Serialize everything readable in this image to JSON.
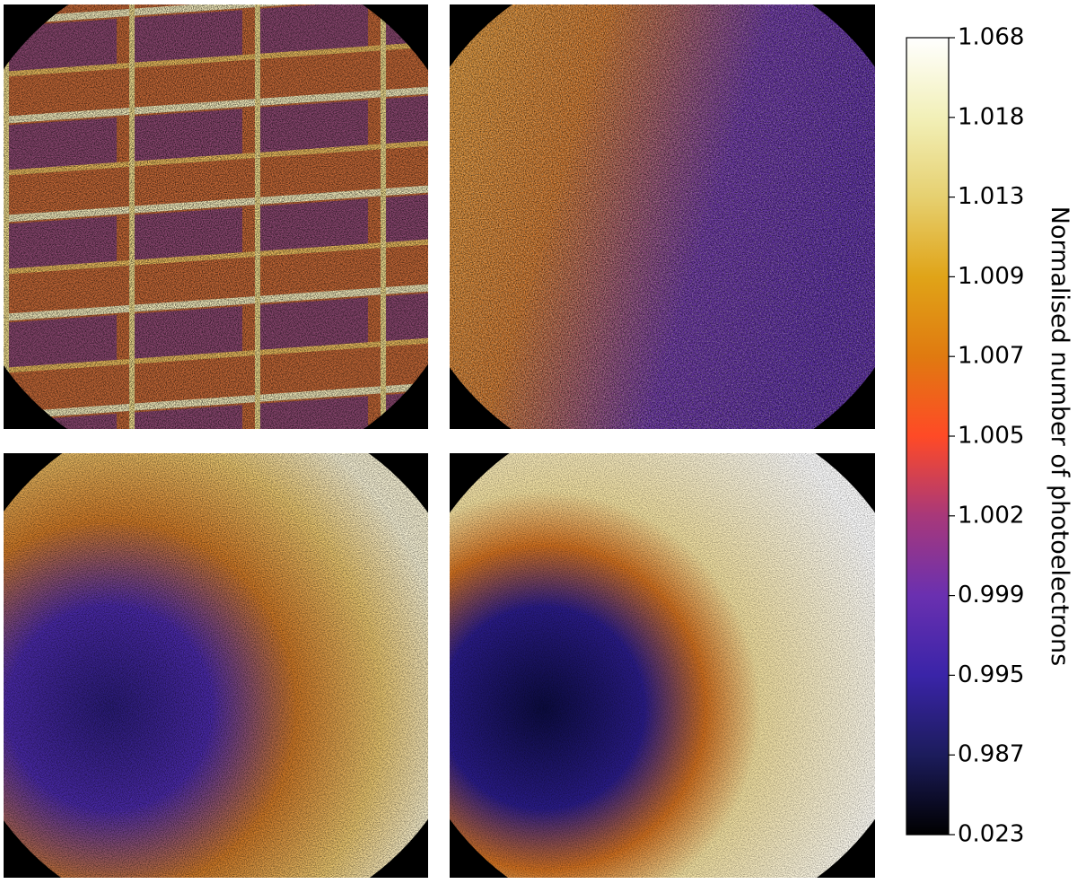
{
  "chart_data": {
    "type": "heatmap-grid",
    "colorbar": {
      "label": "Normalised number of photoelectrons",
      "ticks": [
        0.023,
        0.987,
        0.995,
        0.999,
        1.002,
        1.005,
        1.007,
        1.009,
        1.013,
        1.018,
        1.068
      ],
      "scale": "equalized",
      "colormap": [
        "#000000",
        "#1c1c5c",
        "#3a24a8",
        "#6a30b0",
        "#a8387a",
        "#ff4a26",
        "#e07a10",
        "#e0a418",
        "#e6d070",
        "#f2f0b8",
        "#ffffff"
      ]
    }
  }
}
